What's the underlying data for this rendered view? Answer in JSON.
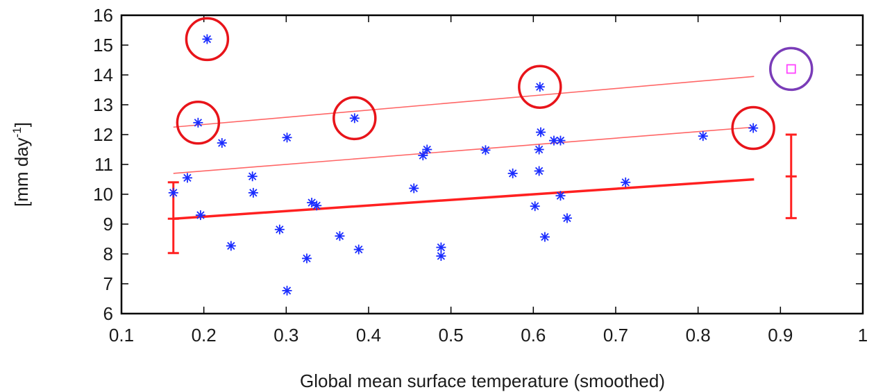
{
  "chart_data": {
    "type": "scatter",
    "title": "",
    "xlabel": "Global mean surface temperature (smoothed)",
    "ylabel_main": "[mm day",
    "ylabel_sup": "-1",
    "ylabel_end": "]",
    "xlim": [
      0.1,
      1.0
    ],
    "ylim": [
      6,
      16
    ],
    "x_ticks": [
      "0.1",
      "0.2",
      "0.3",
      "0.4",
      "0.5",
      "0.6",
      "0.7",
      "0.8",
      "0.9",
      "1"
    ],
    "y_ticks": [
      "6",
      "7",
      "8",
      "9",
      "10",
      "11",
      "12",
      "13",
      "14",
      "15",
      "16"
    ],
    "grid": false,
    "colors": {
      "points": "#1a2cff",
      "lines": "#ff2020",
      "bands": "#ff6666",
      "circles": "#e8141a",
      "special_circle": "#7a3cb8",
      "special_square": "#ff44ff",
      "axis": "#000000"
    },
    "series": [
      {
        "marker": "asterisk",
        "points": [
          [
            0.163,
            10.05
          ],
          [
            0.18,
            10.55
          ],
          [
            0.193,
            12.4
          ],
          [
            0.196,
            9.3
          ],
          [
            0.204,
            15.2
          ],
          [
            0.222,
            11.72
          ],
          [
            0.233,
            8.27
          ],
          [
            0.259,
            10.6
          ],
          [
            0.26,
            10.05
          ],
          [
            0.292,
            8.82
          ],
          [
            0.301,
            11.9
          ],
          [
            0.301,
            6.77
          ],
          [
            0.325,
            7.85
          ],
          [
            0.331,
            9.72
          ],
          [
            0.337,
            9.62
          ],
          [
            0.365,
            8.6
          ],
          [
            0.383,
            12.55
          ],
          [
            0.388,
            8.15
          ],
          [
            0.455,
            10.2
          ],
          [
            0.466,
            11.3
          ],
          [
            0.471,
            11.5
          ],
          [
            0.488,
            8.22
          ],
          [
            0.488,
            7.93
          ],
          [
            0.542,
            11.48
          ],
          [
            0.575,
            10.7
          ],
          [
            0.602,
            9.6
          ],
          [
            0.607,
            11.5
          ],
          [
            0.607,
            10.78
          ],
          [
            0.608,
            13.6
          ],
          [
            0.609,
            12.08
          ],
          [
            0.614,
            8.57
          ],
          [
            0.625,
            11.8
          ],
          [
            0.633,
            11.8
          ],
          [
            0.633,
            9.95
          ],
          [
            0.641,
            9.2
          ],
          [
            0.712,
            10.4
          ],
          [
            0.806,
            11.95
          ],
          [
            0.867,
            12.22
          ]
        ]
      }
    ],
    "lines": [
      {
        "style": "thick",
        "x": [
          0.163,
          0.868
        ],
        "y": [
          9.18,
          10.5
        ]
      },
      {
        "style": "thin",
        "x": [
          0.163,
          0.868
        ],
        "y": [
          10.7,
          12.25
        ]
      },
      {
        "style": "thin",
        "x": [
          0.163,
          0.868
        ],
        "y": [
          12.25,
          13.95
        ]
      }
    ],
    "error_bars": [
      {
        "x": 0.163,
        "low": 8.03,
        "high": 10.4,
        "center": 9.18
      },
      {
        "x": 0.913,
        "low": 9.2,
        "high": 12.0,
        "center": 10.6
      }
    ],
    "highlight_circles": [
      {
        "x": 0.204,
        "y": 15.2
      },
      {
        "x": 0.193,
        "y": 12.4
      },
      {
        "x": 0.383,
        "y": 12.55
      },
      {
        "x": 0.608,
        "y": 13.6
      },
      {
        "x": 0.867,
        "y": 12.22
      }
    ],
    "special_point": {
      "x": 0.913,
      "y": 14.2,
      "marker": "square"
    }
  }
}
